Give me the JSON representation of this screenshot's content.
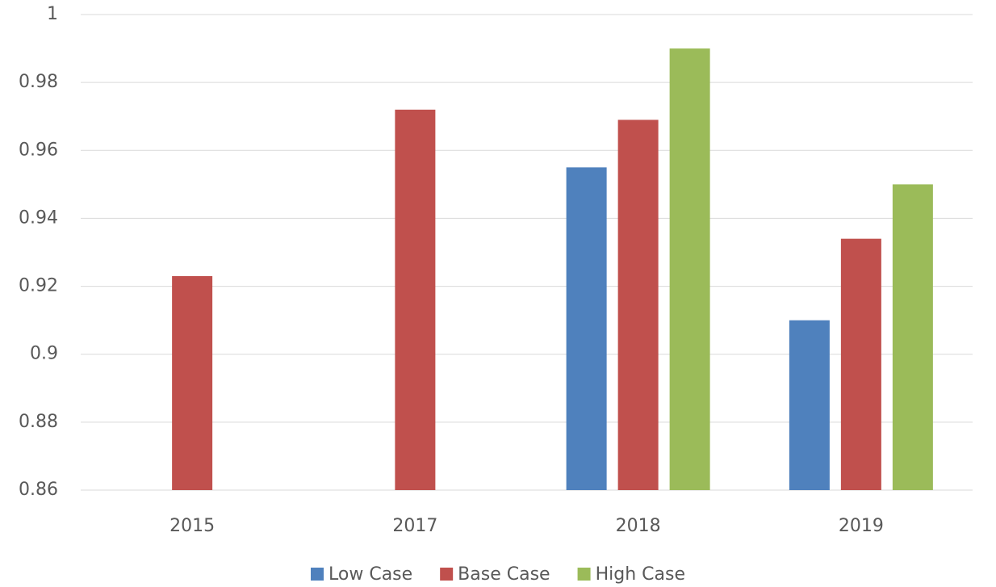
{
  "chart_data": {
    "type": "bar",
    "categories": [
      "2015",
      "2017",
      "2018",
      "2019"
    ],
    "series": [
      {
        "name": "Low Case",
        "color": "#4f81bd",
        "values": [
          null,
          null,
          0.955,
          0.91
        ]
      },
      {
        "name": "Base Case",
        "color": "#c0504d",
        "values": [
          0.923,
          0.972,
          0.969,
          0.934
        ]
      },
      {
        "name": "High Case",
        "color": "#9bbb59",
        "values": [
          null,
          null,
          0.99,
          0.95
        ]
      }
    ],
    "ylim": [
      0.86,
      1
    ],
    "yticks": [
      0.86,
      0.88,
      0.9,
      0.92,
      0.94,
      0.96,
      0.98,
      1
    ],
    "grid": true,
    "legend": "bottom"
  }
}
